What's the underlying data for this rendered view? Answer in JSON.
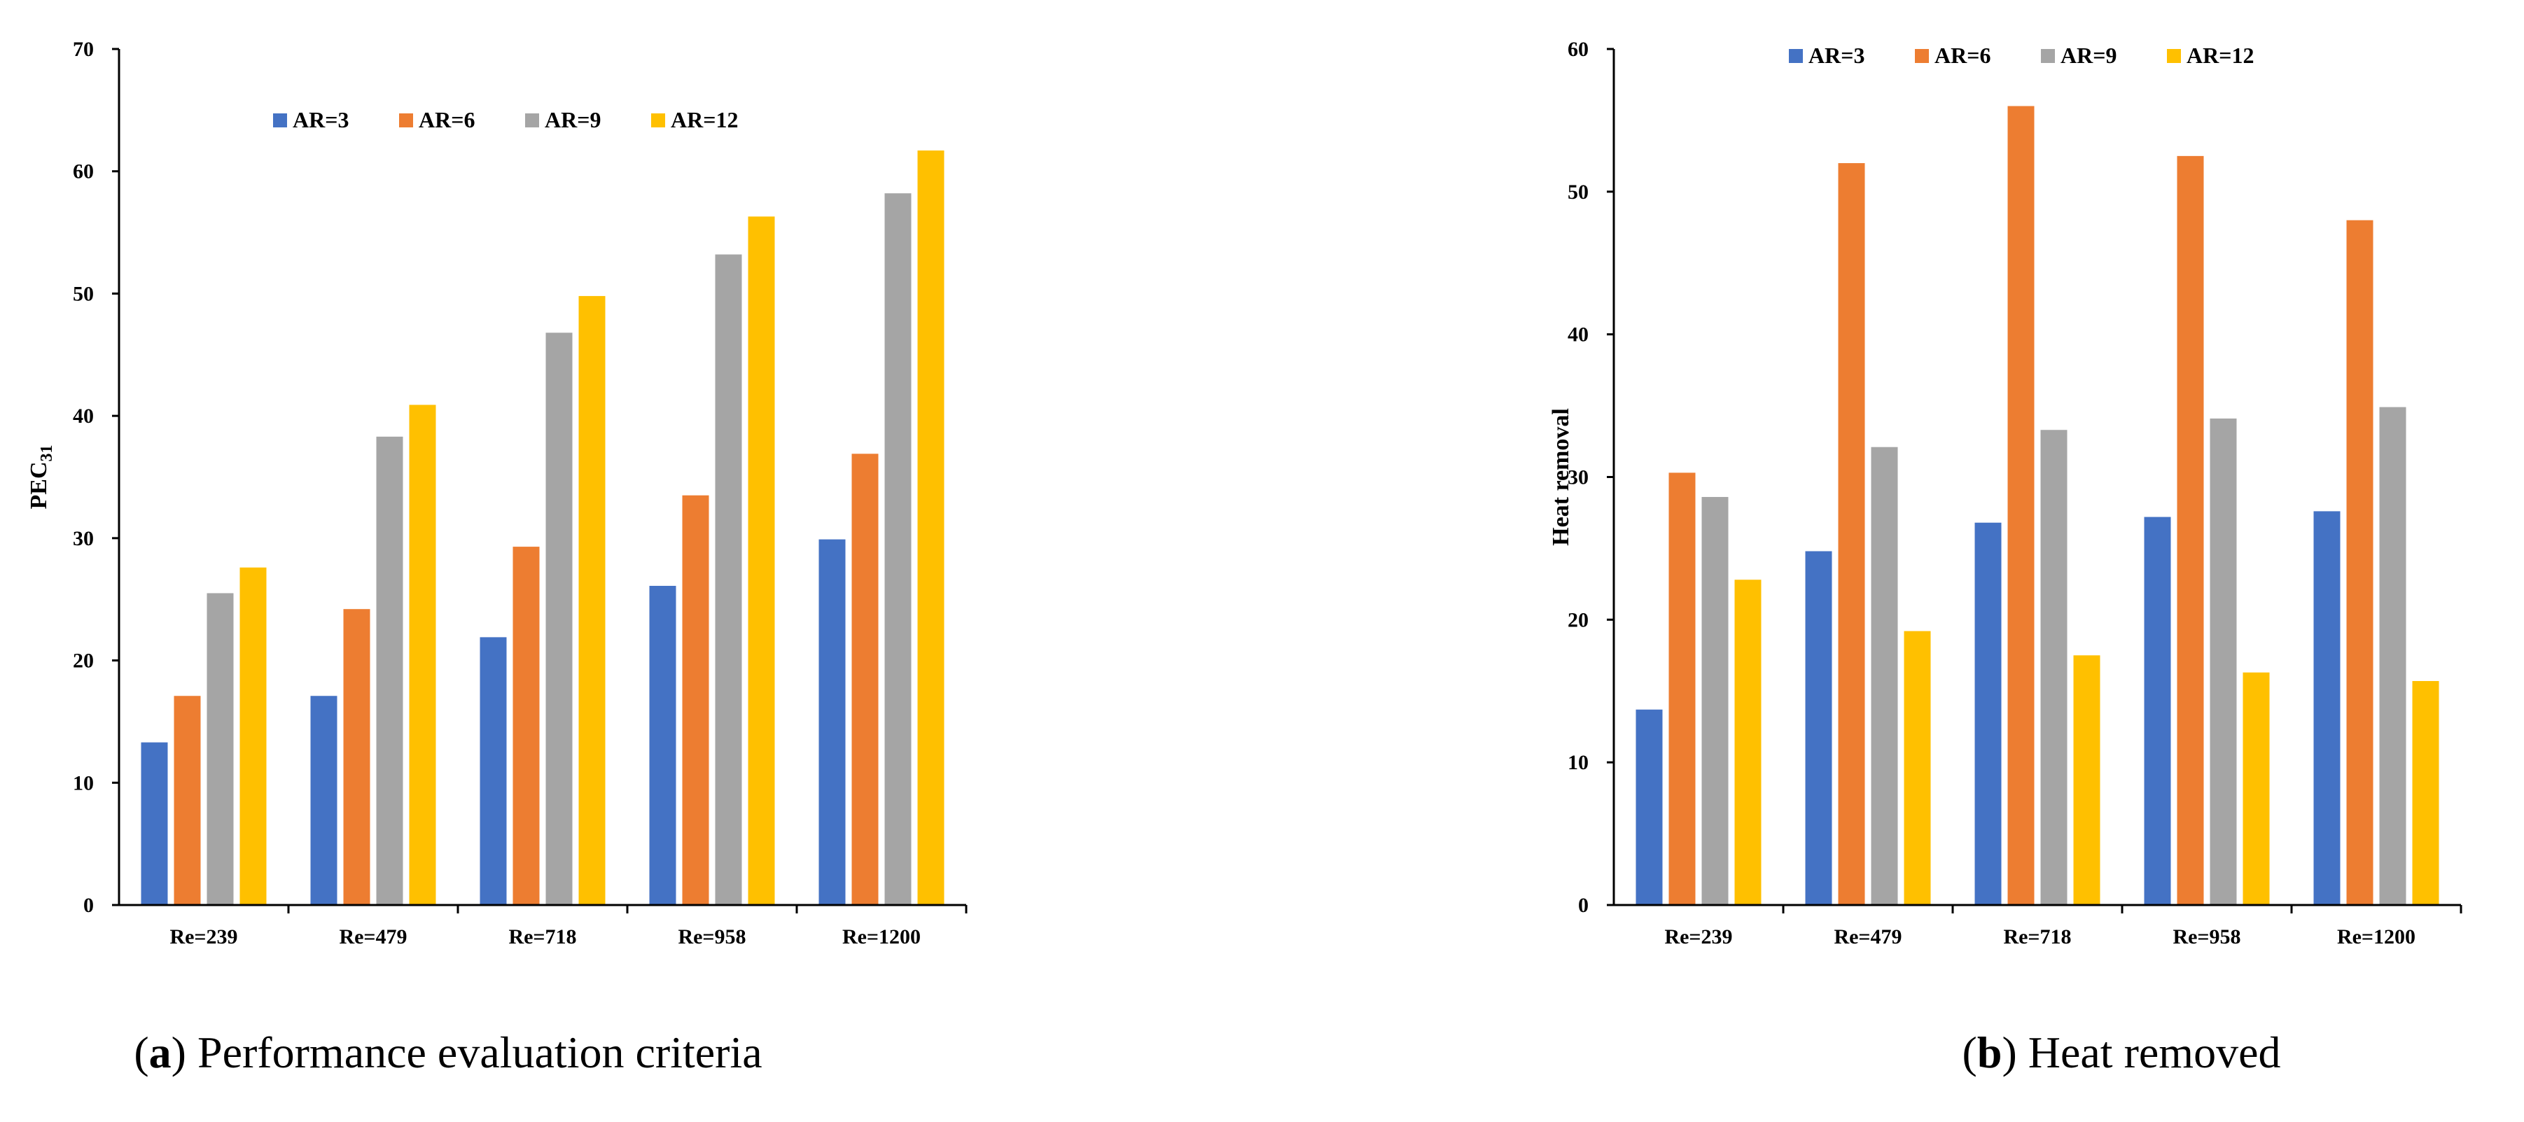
{
  "colors": {
    "AR=3": "#4472C4",
    "AR=6": "#ED7D31",
    "AR=9": "#A5A5A5",
    "AR=12": "#FFC000"
  },
  "chart_data": [
    {
      "type": "bar",
      "title": "",
      "xlabel": "",
      "ylabel_main": "PEC",
      "ylabel_sub": "31",
      "ylim": [
        0,
        70
      ],
      "ystep": 10,
      "categories": [
        "Re=239",
        "Re=479",
        "Re=718",
        "Re=958",
        "Re=1200"
      ],
      "series": [
        {
          "name": "AR=3",
          "values": [
            13.3,
            17.1,
            21.9,
            26.1,
            29.9
          ]
        },
        {
          "name": "AR=6",
          "values": [
            17.1,
            24.2,
            29.3,
            33.5,
            36.9
          ]
        },
        {
          "name": "AR=9",
          "values": [
            25.5,
            38.3,
            46.8,
            53.2,
            58.2
          ]
        },
        {
          "name": "AR=12",
          "values": [
            27.6,
            40.9,
            49.8,
            56.3,
            61.7
          ]
        }
      ],
      "legend": "top-center",
      "caption_letter": "a",
      "caption_text": "Performance evaluation criteria"
    },
    {
      "type": "bar",
      "title": "",
      "xlabel": "",
      "ylabel_main": "Heat removal",
      "ylabel_sub": "",
      "ylim": [
        0,
        60
      ],
      "ystep": 10,
      "categories": [
        "Re=239",
        "Re=479",
        "Re=718",
        "Re=958",
        "Re=1200"
      ],
      "series": [
        {
          "name": "AR=3",
          "values": [
            13.7,
            24.8,
            26.8,
            27.2,
            27.6
          ]
        },
        {
          "name": "AR=6",
          "values": [
            30.3,
            52.0,
            56.0,
            52.5,
            48.0
          ]
        },
        {
          "name": "AR=9",
          "values": [
            28.6,
            32.1,
            33.3,
            34.1,
            34.9
          ]
        },
        {
          "name": "AR=12",
          "values": [
            22.8,
            19.2,
            17.5,
            16.3,
            15.7
          ]
        }
      ],
      "legend": "top-center",
      "caption_letter": "b",
      "caption_text": "Heat removed"
    }
  ]
}
